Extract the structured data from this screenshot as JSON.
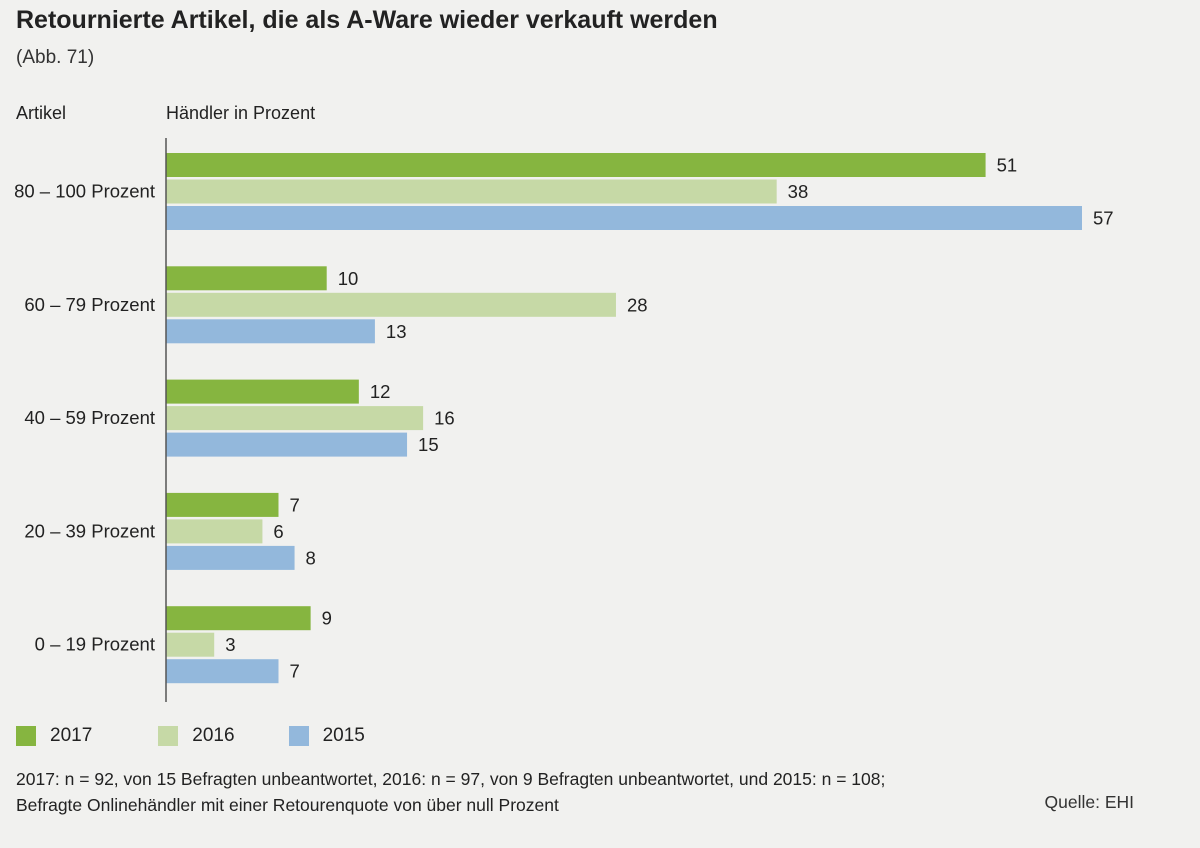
{
  "title": "Retournierte Artikel, die als A-Ware wieder verkauft werden",
  "subtitle": "(Abb. 71)",
  "column_headers": {
    "left": "Artikel",
    "right": "Händler in Prozent"
  },
  "footnote": {
    "line1": "2017: n = 92, von 15 Befragten unbeantwortet, 2016: n = 97, von 9 Befragten unbeantwortet, und 2015: n = 108;",
    "line2": "Befragte Onlinehändler mit einer Retourenquote von über null Prozent"
  },
  "source": "Quelle: EHI",
  "colors": {
    "2017": "#86b540",
    "2016": "#c6d9a6",
    "2015": "#93b8dc",
    "axis": "#555555"
  },
  "chart_data": {
    "type": "bar",
    "orientation": "horizontal",
    "title": "Retournierte Artikel, die als A-Ware wieder verkauft werden",
    "xlabel": "Händler in Prozent",
    "ylabel": "Artikel",
    "categories": [
      "80 – 100 Prozent",
      "60 – 79 Prozent",
      "40 – 59 Prozent",
      "20 – 39 Prozent",
      "0 – 19 Prozent"
    ],
    "series": [
      {
        "name": "2017",
        "color": "#86b540",
        "values": [
          51,
          10,
          12,
          7,
          9
        ]
      },
      {
        "name": "2016",
        "color": "#c6d9a6",
        "values": [
          38,
          28,
          16,
          6,
          3
        ]
      },
      {
        "name": "2015",
        "color": "#93b8dc",
        "values": [
          57,
          13,
          15,
          8,
          7
        ]
      }
    ],
    "xlim": [
      0,
      57
    ],
    "grid": false,
    "legend_position": "bottom-left"
  }
}
